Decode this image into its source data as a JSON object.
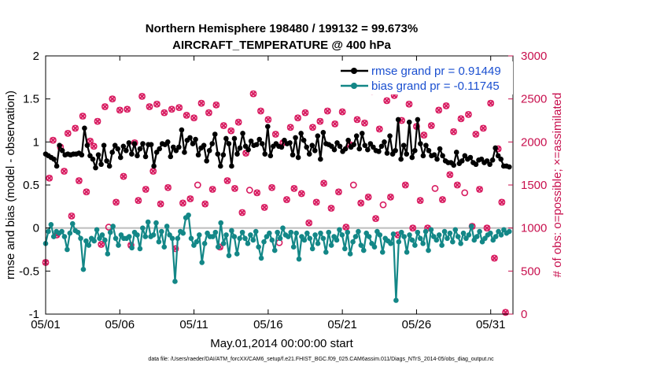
{
  "chart_data": {
    "type": "line",
    "title": [
      "Northern Hemisphere 198480 / 199132 = 99.673%",
      "AIRCRAFT_TEMPERATURE @ 400 hPa"
    ],
    "xlabel": "May.01,2014 00:00:00 start",
    "ylabel_left": "rmse and bias (model - observation)",
    "ylabel_right": "# of obs: o=possible; ×=assimilated",
    "xlim": [
      0,
      31.5
    ],
    "ylim_left": [
      -1,
      2
    ],
    "ylim_right": [
      0,
      3000
    ],
    "x_ticks": [
      0,
      5,
      10,
      15,
      20,
      25,
      30
    ],
    "x_tick_labels": [
      "05/01",
      "05/06",
      "05/11",
      "05/16",
      "05/21",
      "05/26",
      "05/31"
    ],
    "y_ticks_left": [
      -1,
      -0.5,
      0,
      0.5,
      1,
      1.5,
      2
    ],
    "y_tick_labels_left": [
      "-1",
      "-0.5",
      "0",
      "0.5",
      "1",
      "1.5",
      "2"
    ],
    "y_ticks_right": [
      0,
      500,
      1000,
      1500,
      2000,
      2500,
      3000
    ],
    "y_tick_labels_right": [
      "0",
      "500",
      "1000",
      "1500",
      "2000",
      "2500",
      "3000"
    ],
    "legend": [
      "rmse grand pr = 0.91449",
      "bias grand pr = -0.11745"
    ],
    "zero_line": 0,
    "series": [
      {
        "name": "rmse",
        "color": "#000000",
        "values": [
          0.86,
          0.84,
          0.82,
          0.8,
          0.72,
          0.96,
          0.9,
          0.85,
          0.86,
          0.85,
          0.86,
          0.86,
          0.87,
          0.85,
          1.16,
          0.96,
          0.84,
          0.8,
          0.7,
          0.85,
          0.74,
          0.96,
          0.78,
          0.72,
          0.88,
          0.96,
          0.92,
          0.82,
          0.95,
          0.9,
          0.99,
          0.86,
          0.98,
          0.84,
          0.92,
          0.98,
          0.83,
          0.97,
          0.97,
          0.72,
          0.88,
          0.92,
          0.98,
          0.97,
          1.0,
          0.83,
          0.94,
          0.9,
          0.94,
          1.14,
          0.88,
          1.02,
          1.05,
          0.98,
          1.03,
          0.85,
          0.93,
          0.96,
          0.78,
          0.9,
          0.98,
          1.09,
          0.86,
          0.72,
          0.85,
          1.04,
          0.98,
          0.72,
          1.04,
          0.86,
          0.93,
          1.1,
          0.95,
          0.91,
          1.01,
          0.96,
          0.97,
          1.03,
          0.98,
          0.86,
          1.18,
          0.84,
          0.95,
          0.98,
          0.95,
          0.94,
          1.02,
          0.98,
          0.99,
          0.85,
          1.05,
          0.82,
          1.1,
          1.02,
          0.94,
          0.86,
          0.96,
          0.9,
          1.07,
          0.8,
          1.11,
          0.98,
          0.97,
          0.95,
          0.91,
          0.99,
          0.95,
          0.89,
          0.92,
          1.02,
          0.94,
          0.97,
          1.07,
          0.92,
          1.1,
          0.96,
          0.91,
          0.98,
          0.94,
          0.9,
          0.89,
          0.95,
          1.0,
          0.87,
          1.07,
          0.86,
          0.9,
          1.26,
          0.8,
          0.96,
          0.86,
          1.23,
          0.82,
          0.9,
          1.26,
          0.98,
          0.84,
          0.96,
          0.9,
          0.84,
          0.85,
          0.8,
          0.92,
          0.84,
          0.78,
          0.76,
          0.76,
          0.73,
          0.88,
          0.75,
          0.78,
          0.84,
          0.8,
          0.82,
          0.76,
          0.74,
          0.79,
          0.8,
          0.76,
          0.78,
          0.74,
          0.79,
          0.93,
          0.84,
          0.8,
          0.72,
          0.72,
          0.71
        ]
      },
      {
        "name": "bias",
        "color": "#138787",
        "values": [
          -0.18,
          -0.04,
          0.04,
          -0.1,
          -0.04,
          -0.06,
          -0.04,
          -0.1,
          -0.25,
          -0.06,
          0.05,
          -0.03,
          -0.05,
          -0.12,
          -0.48,
          -0.15,
          -0.2,
          -0.12,
          -0.15,
          -0.02,
          -0.12,
          -0.08,
          -0.14,
          -0.3,
          -0.05,
          0.02,
          -0.12,
          -0.2,
          -0.08,
          -0.12,
          -0.12,
          -0.1,
          -0.23,
          -0.05,
          -0.08,
          -0.24,
          0.0,
          -0.1,
          0.07,
          -0.1,
          -0.08,
          0.06,
          -0.16,
          -0.04,
          -0.22,
          0.02,
          -0.08,
          -0.12,
          -0.62,
          -0.12,
          -0.04,
          -0.06,
          0.12,
          0.15,
          -0.12,
          -0.2,
          -0.16,
          -0.08,
          -0.4,
          -0.18,
          -0.06,
          -0.1,
          -0.1,
          -0.05,
          -0.22,
          0.06,
          -0.18,
          -0.08,
          -0.32,
          -0.03,
          -0.1,
          -0.3,
          -0.12,
          -0.05,
          -0.12,
          -0.18,
          -0.08,
          -0.14,
          -0.04,
          -0.22,
          -0.35,
          -0.16,
          -0.1,
          -0.06,
          -0.14,
          -0.26,
          -0.05,
          -0.12,
          0.0,
          -0.08,
          -0.1,
          -0.05,
          -0.22,
          -0.06,
          -0.36,
          -0.1,
          -0.14,
          -0.06,
          -0.12,
          -0.24,
          -0.08,
          -0.18,
          -0.06,
          -0.12,
          -0.28,
          -0.05,
          -0.2,
          -0.1,
          -0.14,
          -0.02,
          -0.08,
          -0.24,
          -0.05,
          -0.3,
          -0.16,
          -0.1,
          -0.04,
          -0.2,
          -0.26,
          -0.06,
          -0.1,
          -0.18,
          -0.22,
          -0.04,
          -0.08,
          -0.28,
          -0.12,
          -0.15,
          -0.18,
          -0.07,
          -0.84,
          -0.16,
          -0.05,
          -0.1,
          -0.28,
          -0.08,
          -0.14,
          -0.2,
          -0.05,
          -0.12,
          -0.18,
          -0.04,
          -0.26,
          -0.02,
          -0.1,
          -0.14,
          -0.08,
          -0.2,
          -0.04,
          -0.12,
          -0.06,
          -0.16,
          -0.02,
          -0.1,
          -0.18,
          -0.06,
          -0.12,
          -0.08,
          0.02,
          -0.14,
          -0.1,
          -0.04,
          -0.16,
          -0.12,
          -0.08,
          -0.06,
          -0.14,
          -0.1,
          -0.04,
          -0.08,
          -0.02,
          -0.06,
          -0.04
        ]
      }
    ],
    "obs_marker_color": "#d81b60",
    "obs_count": {
      "x": [
        0,
        0.25,
        0.5,
        0.75,
        1,
        1.25,
        1.5,
        1.75,
        2,
        2.25,
        2.5,
        2.75,
        3,
        3.25,
        3.5,
        3.75,
        4,
        4.25,
        4.5,
        4.75,
        5,
        5.25,
        5.5,
        5.75,
        6,
        6.25,
        6.5,
        6.75,
        7,
        7.25,
        7.5,
        7.75,
        8,
        8.25,
        8.5,
        8.75,
        9,
        9.25,
        9.5,
        9.75,
        10,
        10.25,
        10.5,
        10.75,
        11,
        11.25,
        11.5,
        11.75,
        12,
        12.25,
        12.5,
        12.75,
        13,
        13.25,
        13.5,
        13.75,
        14,
        14.25,
        14.5,
        14.75,
        15,
        15.25,
        15.5,
        15.75,
        16,
        16.25,
        16.5,
        16.75,
        17,
        17.25,
        17.5,
        17.75,
        18,
        18.25,
        18.5,
        18.75,
        19,
        19.25,
        19.5,
        19.75,
        20,
        20.25,
        20.5,
        20.75,
        21,
        21.25,
        21.5,
        21.75,
        22,
        22.25,
        22.5,
        22.75,
        23,
        23.25,
        23.5,
        23.75,
        24,
        24.25,
        24.5,
        24.75,
        25,
        25.25,
        25.5,
        25.75,
        26,
        26.25,
        26.5,
        26.75,
        27,
        27.25,
        27.5,
        27.75,
        28,
        28.25,
        28.5,
        28.75,
        29,
        29.25,
        29.5,
        29.75,
        30,
        30.25,
        30.5,
        30.75,
        31
      ],
      "values": [
        600,
        1580,
        2020,
        920,
        1940,
        1660,
        2100,
        1140,
        2160,
        1550,
        2300,
        1420,
        2010,
        1950,
        2240,
        810,
        2410,
        1010,
        2500,
        1300,
        2370,
        1600,
        2380,
        800,
        1990,
        1320,
        2530,
        1450,
        2410,
        1660,
        2440,
        1280,
        2340,
        1470,
        2380,
        760,
        2400,
        1290,
        2310,
        1340,
        2280,
        1500,
        2450,
        1280,
        2340,
        1450,
        2430,
        780,
        2190,
        1550,
        2130,
        1460,
        2230,
        1180,
        1870,
        1440,
        2560,
        1410,
        2360,
        1240,
        2260,
        1470,
        2090,
        830,
        1990,
        1330,
        2170,
        1460,
        2280,
        1400,
        2340,
        1060,
        2170,
        1300,
        2240,
        1520,
        2360,
        1230,
        2210,
        1420,
        2350,
        1010,
        1970,
        1500,
        2260,
        1290,
        2220,
        1360,
        2590,
        1110,
        2150,
        1270,
        2480,
        1360,
        2540,
        920,
        2250,
        1500,
        2440,
        1000,
        2180,
        1320,
        2080,
        1000,
        2190,
        1460,
        2370,
        1330,
        2420,
        1620,
        2120,
        1500,
        2270,
        1410,
        2320,
        1020,
        2090,
        1450,
        2160,
        1000,
        2450,
        650,
        1920,
        1300,
        20
      ],
      "possible_hollow_at": [
        17,
        41,
        55,
        63,
        83,
        91,
        105,
        113
      ]
    }
  },
  "footer": "data file: /Users/raeder/DAI/ATM_forcXX/CAM6_setup/f.e21.FHIST_BGC.f09_025.CAM6assim.011/Diags_NTrS_2014-05/obs_diag_output.nc"
}
